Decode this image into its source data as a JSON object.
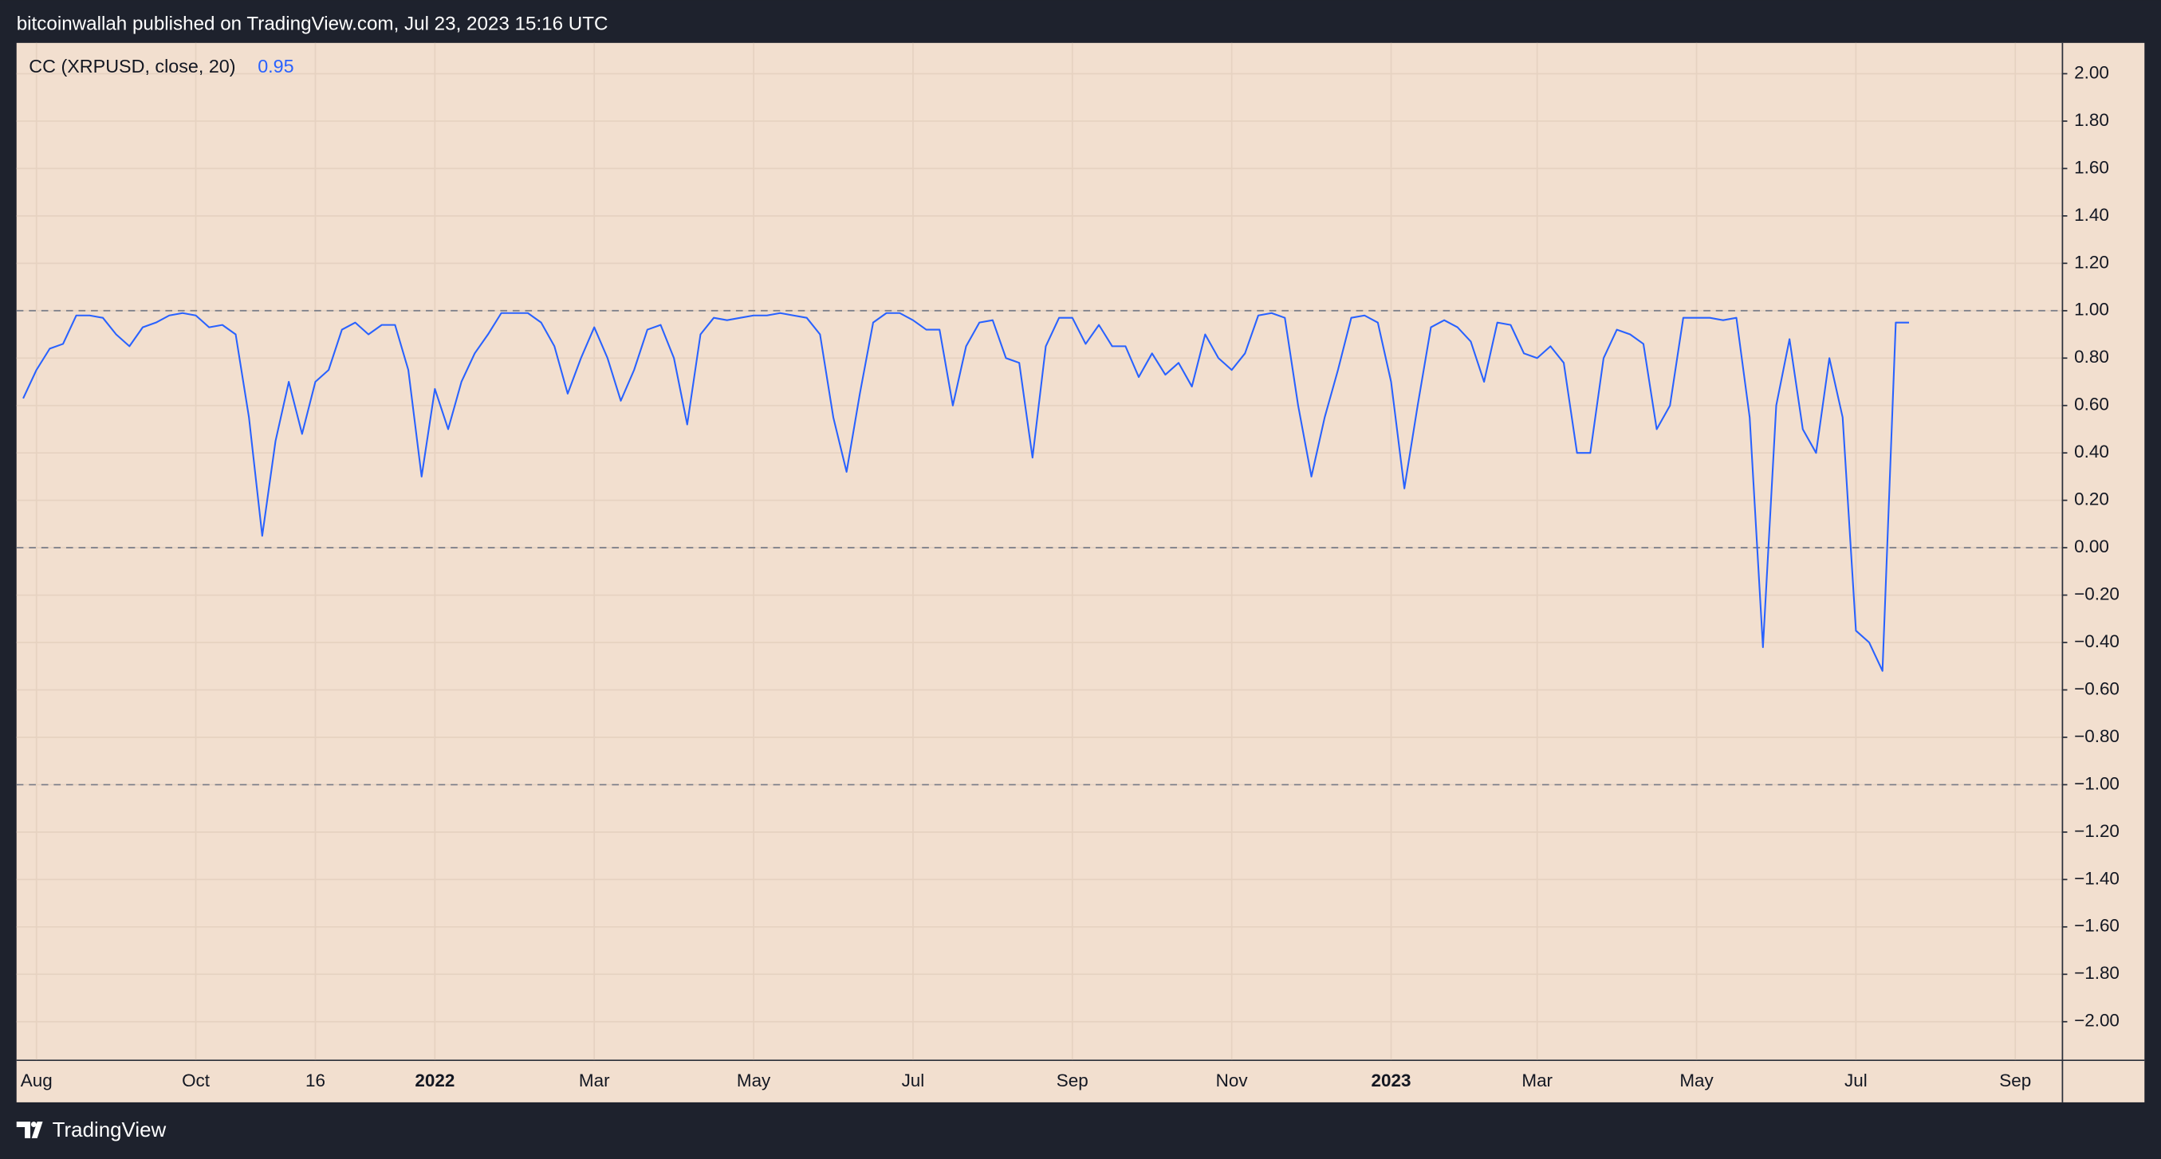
{
  "header": "bitcoinwallah published on TradingView.com, Jul 23, 2023 15:16 UTC",
  "footer": "TradingView",
  "chart_data": {
    "type": "line",
    "categories": [
      null,
      "Aug",
      null,
      null,
      null,
      null,
      null,
      null,
      null,
      null,
      null,
      null,
      null,
      "Oct",
      null,
      null,
      null,
      null,
      null,
      null,
      null,
      null,
      "16",
      null,
      null,
      null,
      null,
      null,
      null,
      null,
      null,
      "2022",
      null,
      null,
      null,
      null,
      null,
      null,
      null,
      null,
      null,
      null,
      null,
      "Mar",
      null,
      null,
      null,
      null,
      null,
      null,
      null,
      null,
      null,
      null,
      null,
      "May",
      null,
      null,
      null,
      null,
      null,
      null,
      null,
      null,
      null,
      null,
      null,
      "Jul",
      null,
      null,
      null,
      null,
      null,
      null,
      null,
      null,
      null,
      null,
      null,
      "Sep",
      null,
      null,
      null,
      null,
      null,
      null,
      null,
      null,
      null,
      null,
      null,
      "Nov",
      null,
      null,
      null,
      null,
      null,
      null,
      null,
      null,
      null,
      null,
      null,
      "2023",
      null,
      null,
      null,
      null,
      null,
      null,
      null,
      null,
      null,
      null,
      "Mar",
      null,
      null,
      null,
      null,
      null,
      null,
      null,
      null,
      null,
      null,
      null,
      "May",
      null,
      null,
      null,
      null,
      null,
      null,
      null,
      null,
      null,
      null,
      null,
      "Jul",
      null,
      null,
      null,
      null,
      null,
      null,
      null,
      null,
      null,
      null,
      null,
      "Sep",
      null,
      null,
      null
    ],
    "series": [
      {
        "name": "CC (XRPUSD, close, 20)",
        "color": "#2962ff",
        "last_value": 0.95,
        "values": [
          0.63,
          0.75,
          0.84,
          0.86,
          0.98,
          0.98,
          0.97,
          0.9,
          0.85,
          0.93,
          0.95,
          0.98,
          0.99,
          0.98,
          0.93,
          0.94,
          0.9,
          0.55,
          0.05,
          0.45,
          0.7,
          0.48,
          0.7,
          0.75,
          0.92,
          0.95,
          0.9,
          0.94,
          0.94,
          0.75,
          0.3,
          0.67,
          0.5,
          0.7,
          0.82,
          0.9,
          0.99,
          0.99,
          0.99,
          0.95,
          0.85,
          0.65,
          0.8,
          0.93,
          0.8,
          0.62,
          0.75,
          0.92,
          0.94,
          0.8,
          0.52,
          0.9,
          0.97,
          0.96,
          0.97,
          0.98,
          0.98,
          0.99,
          0.98,
          0.97,
          0.9,
          0.55,
          0.32,
          0.65,
          0.95,
          0.99,
          0.99,
          0.96,
          0.92,
          0.92,
          0.6,
          0.85,
          0.95,
          0.96,
          0.8,
          0.78,
          0.38,
          0.85,
          0.97,
          0.97,
          0.86,
          0.94,
          0.85,
          0.85,
          0.72,
          0.82,
          0.73,
          0.78,
          0.68,
          0.9,
          0.8,
          0.75,
          0.82,
          0.98,
          0.99,
          0.97,
          0.6,
          0.3,
          0.55,
          0.75,
          0.97,
          0.98,
          0.95,
          0.7,
          0.25,
          0.6,
          0.93,
          0.96,
          0.93,
          0.87,
          0.7,
          0.95,
          0.94,
          0.82,
          0.8,
          0.85,
          0.78,
          0.4,
          0.4,
          0.8,
          0.92,
          0.9,
          0.86,
          0.5,
          0.6,
          0.97,
          0.97,
          0.97,
          0.96,
          0.97,
          0.55,
          -0.42,
          0.6,
          0.88,
          0.5,
          0.4,
          0.8,
          0.55,
          -0.35,
          -0.4,
          -0.52,
          0.95,
          0.95,
          null,
          null,
          null,
          null,
          null,
          null,
          null,
          null,
          null,
          null,
          null
        ]
      }
    ],
    "ylim": [
      -2.16,
      2.13
    ],
    "yticks": [
      {
        "value": 2,
        "label": "2.00"
      },
      {
        "value": 1.8,
        "label": "1.80"
      },
      {
        "value": 1.6,
        "label": "1.60"
      },
      {
        "value": 1.4,
        "label": "1.40"
      },
      {
        "value": 1.2,
        "label": "1.20"
      },
      {
        "value": 1,
        "label": "1.00"
      },
      {
        "value": 0.8,
        "label": "0.80"
      },
      {
        "value": 0.6,
        "label": "0.60"
      },
      {
        "value": 0.4,
        "label": "0.40"
      },
      {
        "value": 0.2,
        "label": "0.20"
      },
      {
        "value": 0,
        "label": "0.00"
      },
      {
        "value": -0.2,
        "label": "−0.20"
      },
      {
        "value": -0.4,
        "label": "−0.40"
      },
      {
        "value": -0.6,
        "label": "−0.60"
      },
      {
        "value": -0.8,
        "label": "−0.80"
      },
      {
        "value": -1,
        "label": "−1.00"
      },
      {
        "value": -1.2,
        "label": "−1.20"
      },
      {
        "value": -1.4,
        "label": "−1.40"
      },
      {
        "value": -1.6,
        "label": "−1.60"
      },
      {
        "value": -1.8,
        "label": "−1.80"
      },
      {
        "value": -2,
        "label": "−2.00"
      }
    ],
    "levels": [
      1,
      0,
      -1
    ],
    "grid": true
  }
}
